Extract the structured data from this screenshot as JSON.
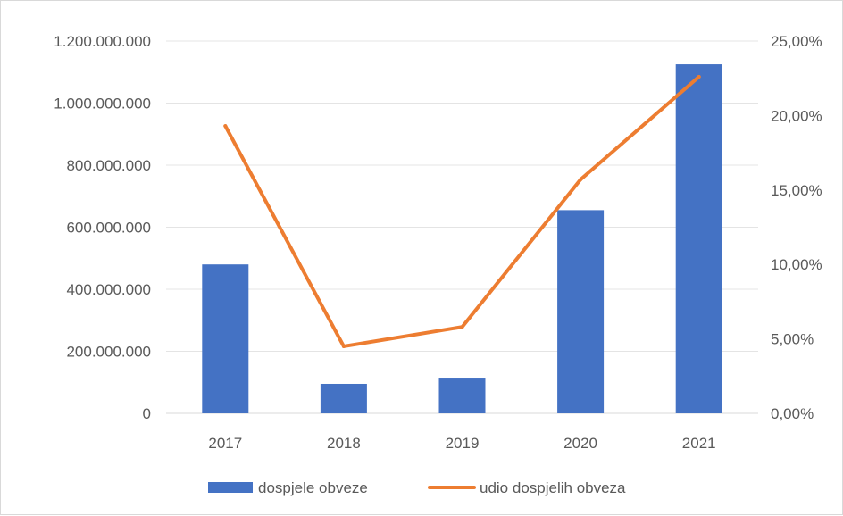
{
  "chart_data": {
    "type": "bar",
    "categories": [
      "2017",
      "2018",
      "2019",
      "2020",
      "2021"
    ],
    "series": [
      {
        "name": "dospjele obveze",
        "type": "bar",
        "axis": "left",
        "color": "#4472c4",
        "values": [
          480000000,
          95000000,
          115000000,
          655000000,
          1125000000
        ]
      },
      {
        "name": "udio dospjelih obveza",
        "type": "line",
        "axis": "right",
        "color": "#ed7d31",
        "values": [
          0.193,
          0.045,
          0.058,
          0.157,
          0.226
        ]
      }
    ],
    "y_left": {
      "lim": [
        0,
        1200000000
      ],
      "ticks": [
        "0",
        "200.000.000",
        "400.000.000",
        "600.000.000",
        "800.000.000",
        "1.000.000.000",
        "1.200.000.000"
      ]
    },
    "y_right": {
      "lim": [
        0,
        0.25
      ],
      "ticks": [
        "0,00%",
        "5,00%",
        "10,00%",
        "15,00%",
        "20,00%",
        "25,00%"
      ]
    },
    "grid": true,
    "legend": "bottom",
    "title": "",
    "xlabel": "",
    "ylabel": ""
  }
}
